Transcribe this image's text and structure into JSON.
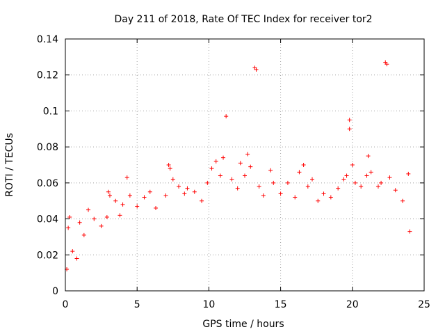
{
  "chart_data": {
    "type": "scatter",
    "title": "Day 211 of 2018, Rate Of TEC Index for receiver tor2",
    "xlabel": "GPS time / hours",
    "ylabel": "ROTI / TECUs",
    "xlim": [
      0,
      25
    ],
    "ylim": [
      0,
      0.14
    ],
    "x_ticks": [
      0,
      5,
      10,
      15,
      20,
      25
    ],
    "x_tick_labels": [
      "0",
      "5",
      "10",
      "15",
      "20",
      "25"
    ],
    "y_ticks": [
      0,
      0.02,
      0.04,
      0.06,
      0.08,
      0.1,
      0.12,
      0.14
    ],
    "y_tick_labels": [
      "0",
      "0.02",
      "0.04",
      "0.06",
      "0.08",
      "0.1",
      "0.12",
      "0.14"
    ],
    "grid": true,
    "marker": "+",
    "color": "#ff0000",
    "series": [
      {
        "name": "ROTI",
        "points": [
          [
            0.1,
            0.012
          ],
          [
            0.2,
            0.035
          ],
          [
            0.3,
            0.041
          ],
          [
            0.5,
            0.022
          ],
          [
            0.8,
            0.018
          ],
          [
            1.0,
            0.038
          ],
          [
            1.3,
            0.031
          ],
          [
            1.6,
            0.045
          ],
          [
            2.0,
            0.04
          ],
          [
            2.5,
            0.036
          ],
          [
            2.9,
            0.041
          ],
          [
            3.0,
            0.055
          ],
          [
            3.1,
            0.053
          ],
          [
            3.5,
            0.05
          ],
          [
            3.8,
            0.042
          ],
          [
            4.0,
            0.048
          ],
          [
            4.3,
            0.063
          ],
          [
            4.5,
            0.053
          ],
          [
            5.0,
            0.047
          ],
          [
            5.5,
            0.052
          ],
          [
            5.9,
            0.055
          ],
          [
            6.3,
            0.046
          ],
          [
            7.0,
            0.053
          ],
          [
            7.2,
            0.07
          ],
          [
            7.3,
            0.068
          ],
          [
            7.5,
            0.062
          ],
          [
            7.9,
            0.058
          ],
          [
            8.3,
            0.054
          ],
          [
            8.5,
            0.057
          ],
          [
            9.0,
            0.055
          ],
          [
            9.5,
            0.05
          ],
          [
            9.9,
            0.06
          ],
          [
            10.2,
            0.068
          ],
          [
            10.5,
            0.072
          ],
          [
            10.8,
            0.064
          ],
          [
            11.0,
            0.074
          ],
          [
            11.2,
            0.097
          ],
          [
            11.6,
            0.062
          ],
          [
            12.0,
            0.057
          ],
          [
            12.2,
            0.071
          ],
          [
            12.5,
            0.064
          ],
          [
            12.7,
            0.076
          ],
          [
            12.9,
            0.069
          ],
          [
            13.2,
            0.124
          ],
          [
            13.3,
            0.123
          ],
          [
            13.5,
            0.058
          ],
          [
            13.8,
            0.053
          ],
          [
            14.3,
            0.067
          ],
          [
            14.5,
            0.06
          ],
          [
            15.0,
            0.054
          ],
          [
            15.5,
            0.06
          ],
          [
            16.0,
            0.052
          ],
          [
            16.3,
            0.066
          ],
          [
            16.6,
            0.07
          ],
          [
            16.9,
            0.058
          ],
          [
            17.2,
            0.062
          ],
          [
            17.6,
            0.05
          ],
          [
            18.0,
            0.054
          ],
          [
            18.5,
            0.052
          ],
          [
            19.0,
            0.057
          ],
          [
            19.4,
            0.062
          ],
          [
            19.6,
            0.064
          ],
          [
            19.8,
            0.095
          ],
          [
            19.8,
            0.09
          ],
          [
            20.0,
            0.07
          ],
          [
            20.2,
            0.06
          ],
          [
            20.6,
            0.058
          ],
          [
            21.0,
            0.064
          ],
          [
            21.1,
            0.075
          ],
          [
            21.3,
            0.066
          ],
          [
            21.8,
            0.058
          ],
          [
            22.0,
            0.06
          ],
          [
            22.3,
            0.127
          ],
          [
            22.4,
            0.126
          ],
          [
            22.6,
            0.063
          ],
          [
            23.0,
            0.056
          ],
          [
            23.5,
            0.05
          ],
          [
            23.9,
            0.065
          ],
          [
            24.0,
            0.033
          ]
        ]
      }
    ]
  }
}
